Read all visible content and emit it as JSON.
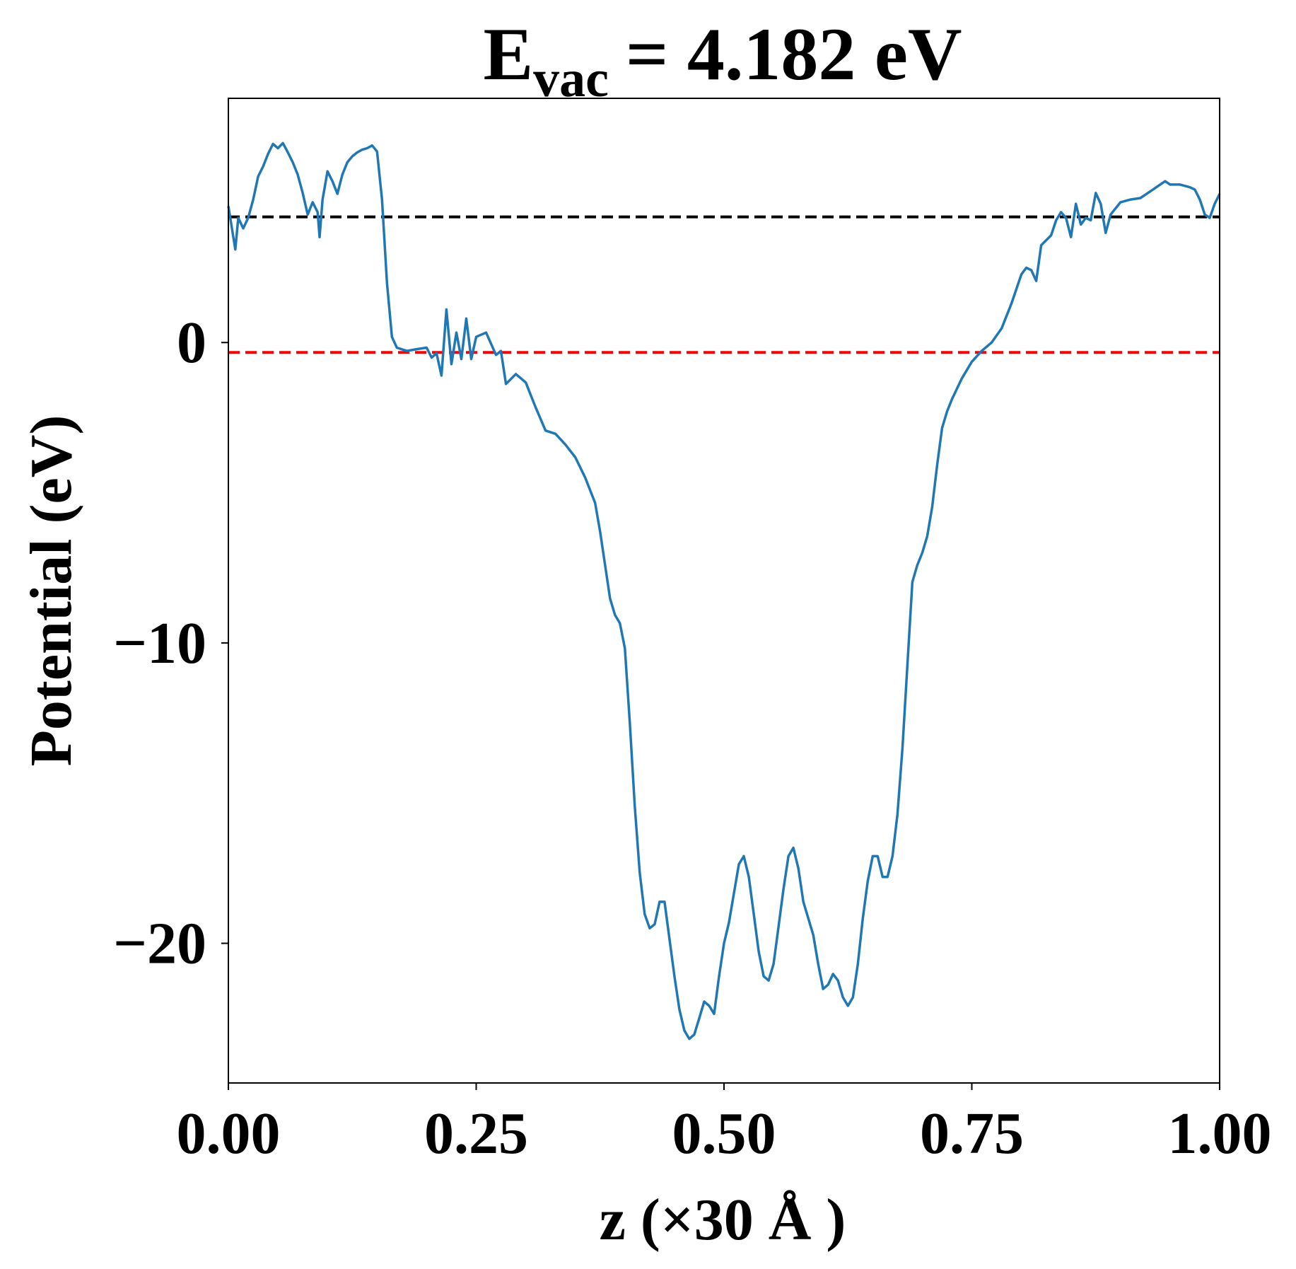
{
  "chart_data": {
    "type": "line",
    "title": "E",
    "title_subscript": "vac",
    "title_rest": "= 4.182 eV",
    "xlabel": "z (×30 Å )",
    "ylabel": "Potential (eV)",
    "xlim": [
      0,
      1
    ],
    "ylim": [
      -24.65,
      8.13
    ],
    "xticks": [
      {
        "value": 0,
        "label": "0.00"
      },
      0.25,
      {
        "value": 0.5,
        "label": "0.50"
      },
      0.75,
      {
        "value": 1,
        "label": "1.00"
      }
    ],
    "yticks": [
      {
        "value": -20,
        "label": "−20"
      },
      {
        "value": -10,
        "label": "−10"
      },
      0
    ],
    "grid": false,
    "color": "#1f77b4",
    "x": [
      0,
      0.007,
      0.01,
      0.015,
      0.02,
      0.025,
      0.03,
      0.035,
      0.04,
      0.045,
      0.05,
      0.055,
      0.06,
      0.065,
      0.07,
      0.075,
      0.08,
      0.085,
      0.09,
      0.092,
      0.095,
      0.1,
      0.105,
      0.11,
      0.115,
      0.12,
      0.125,
      0.13,
      0.135,
      0.14,
      0.145,
      0.15,
      0.155,
      0.16,
      0.165,
      0.17,
      0.18,
      0.19,
      0.2,
      0.205,
      0.21,
      0.215,
      0.22,
      0.225,
      0.23,
      0.235,
      0.24,
      0.245,
      0.25,
      0.26,
      0.27,
      0.275,
      0.28,
      0.29,
      0.3,
      0.31,
      0.32,
      0.33,
      0.34,
      0.35,
      0.36,
      0.37,
      0.375,
      0.38,
      0.385,
      0.39,
      0.395,
      0.4,
      0.405,
      0.41,
      0.415,
      0.42,
      0.425,
      0.43,
      0.435,
      0.44,
      0.445,
      0.45,
      0.455,
      0.46,
      0.465,
      0.47,
      0.475,
      0.48,
      0.485,
      0.49,
      0.495,
      0.5,
      0.505,
      0.51,
      0.515,
      0.52,
      0.525,
      0.53,
      0.535,
      0.54,
      0.545,
      0.55,
      0.555,
      0.56,
      0.565,
      0.57,
      0.575,
      0.58,
      0.585,
      0.59,
      0.595,
      0.6,
      0.605,
      0.61,
      0.615,
      0.62,
      0.625,
      0.63,
      0.635,
      0.64,
      0.645,
      0.65,
      0.655,
      0.66,
      0.665,
      0.67,
      0.675,
      0.68,
      0.685,
      0.69,
      0.695,
      0.7,
      0.705,
      0.71,
      0.715,
      0.72,
      0.725,
      0.73,
      0.74,
      0.75,
      0.76,
      0.77,
      0.78,
      0.79,
      0.8,
      0.805,
      0.81,
      0.815,
      0.82,
      0.83,
      0.835,
      0.84,
      0.845,
      0.85,
      0.855,
      0.86,
      0.865,
      0.87,
      0.875,
      0.88,
      0.885,
      0.89,
      0.9,
      0.91,
      0.92,
      0.93,
      0.94,
      0.945,
      0.95,
      0.96,
      0.97,
      0.975,
      0.98,
      0.985,
      0.99,
      0.995,
      1
    ],
    "values": [
      4.54,
      3.1,
      4.15,
      3.8,
      4.15,
      4.76,
      5.53,
      5.86,
      6.28,
      6.61,
      6.47,
      6.64,
      6.33,
      6.0,
      5.59,
      4.98,
      4.26,
      4.67,
      4.34,
      3.51,
      4.76,
      5.7,
      5.37,
      4.95,
      5.59,
      6.0,
      6.2,
      6.33,
      6.42,
      6.47,
      6.56,
      6.36,
      4.76,
      1.99,
      0.19,
      -0.17,
      -0.28,
      -0.22,
      -0.17,
      -0.5,
      -0.36,
      -1.1,
      1.1,
      -0.72,
      0.33,
      -0.55,
      0.8,
      -0.55,
      0.19,
      0.33,
      -0.41,
      -0.28,
      -1.38,
      -1.05,
      -1.33,
      -2.16,
      -2.93,
      -3.04,
      -3.4,
      -3.82,
      -4.5,
      -5.34,
      -6.3,
      -7.41,
      -8.52,
      -9.07,
      -9.35,
      -10.18,
      -12.67,
      -15.44,
      -17.65,
      -19.03,
      -19.5,
      -19.37,
      -18.62,
      -18.62,
      -19.86,
      -21.1,
      -22.2,
      -22.9,
      -23.18,
      -23.04,
      -22.5,
      -21.94,
      -22.08,
      -22.35,
      -21.1,
      -20,
      -19.31,
      -18.34,
      -17.37,
      -17.1,
      -17.79,
      -19.03,
      -20.28,
      -21.1,
      -21.24,
      -20.69,
      -19.45,
      -18.2,
      -17.1,
      -16.82,
      -17.51,
      -18.62,
      -19.17,
      -19.72,
      -20.69,
      -21.52,
      -21.38,
      -21.02,
      -21.24,
      -21.8,
      -22.08,
      -21.8,
      -20.69,
      -19.17,
      -17.93,
      -17.1,
      -17.1,
      -17.79,
      -17.79,
      -17.1,
      -15.71,
      -13.5,
      -10.73,
      -7.97,
      -7.41,
      -7.0,
      -6.45,
      -5.48,
      -4.09,
      -2.85,
      -2.3,
      -1.88,
      -1.19,
      -0.64,
      -0.28,
      0,
      0.47,
      1.3,
      2.27,
      2.49,
      2.41,
      2.05,
      3.24,
      3.57,
      4.07,
      4.34,
      4.15,
      3.51,
      4.62,
      3.93,
      4.15,
      4.07,
      4.98,
      4.62,
      3.65,
      4.26,
      4.67,
      4.76,
      4.81,
      5.03,
      5.26,
      5.37,
      5.26,
      5.26,
      5.17,
      5.09,
      4.76,
      4.26,
      4.15,
      4.62,
      4.95
    ],
    "hlines": [
      {
        "value": 4.182,
        "color": "#000000"
      },
      {
        "value": -0.33,
        "color": "#ff0000"
      }
    ]
  }
}
